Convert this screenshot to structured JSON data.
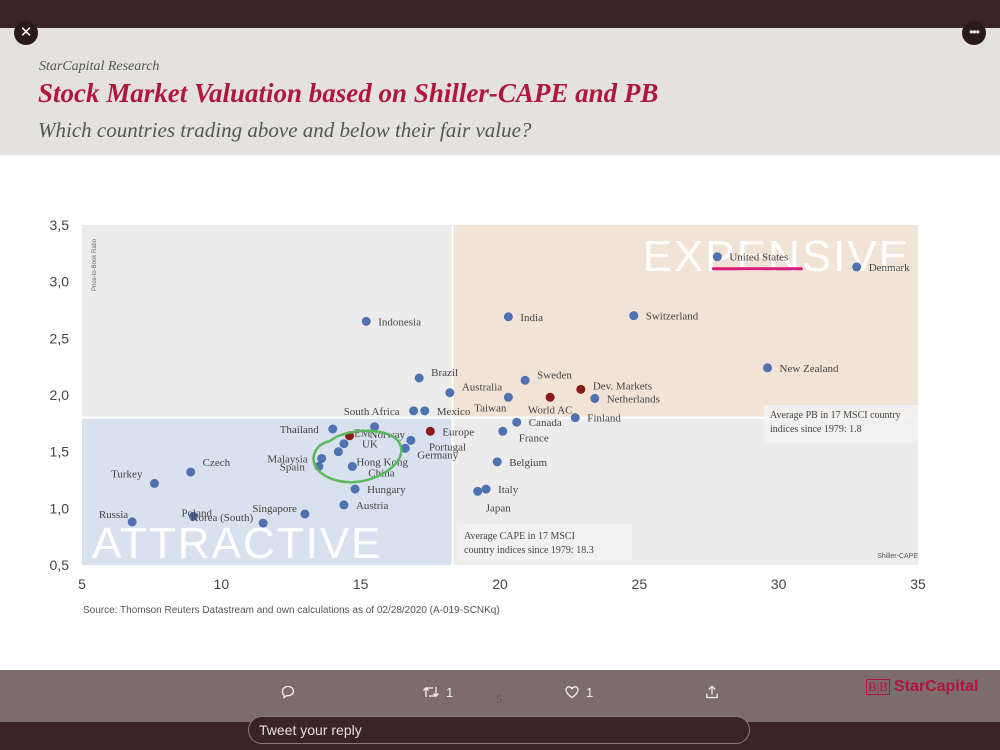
{
  "header": {
    "research": "StarCapital Research",
    "title": "Stock Market Valuation based on Shiller-CAPE and PB",
    "subtitle": "Which countries trading above and below their fair value?"
  },
  "ui": {
    "close_label": "✕",
    "more_label": "•••",
    "retweet_count": "1",
    "like_count": "1",
    "reply_placeholder": "Tweet your reply",
    "page_number": "5"
  },
  "logo": {
    "mark": "B|B",
    "text": "StarCapital"
  },
  "chart_data": {
    "type": "scatter",
    "xlabel": "Shiller-CAPE",
    "ylabel": "Price-to-Book Ratio",
    "xlim": [
      5,
      35
    ],
    "ylim": [
      0.5,
      3.5
    ],
    "xticks": [
      "5",
      "10",
      "15",
      "20",
      "25",
      "30",
      "35"
    ],
    "yticks": [
      "0,5",
      "1,0",
      "1,5",
      "2,0",
      "2,5",
      "3,0",
      "3,5"
    ],
    "avg_cape": 18.3,
    "avg_pb": 1.8,
    "quadrant_labels": {
      "expensive": "EXPENSIVE",
      "attractive": "ATTRACTIVE"
    },
    "avg_cape_note": [
      "Average CAPE in 17 MSCI",
      "country indices since 1979: 18.3"
    ],
    "avg_pb_note": [
      "Average PB in 17 MSCI country",
      "indices since 1979: 1.8"
    ],
    "source": "Source: Thomson Reuters Datastream and own calculations as of 02/28/2020 (A-019-SCNKq)",
    "colors": {
      "country": "#4f72b3",
      "aggregate": "#8b1a1a",
      "highlight_us": "#d81b7c",
      "highlight_circle": "#5cb85c"
    },
    "points": [
      {
        "label": "United States",
        "x": 27.8,
        "y": 3.22,
        "kind": "country"
      },
      {
        "label": "Denmark",
        "x": 32.8,
        "y": 3.13,
        "kind": "country"
      },
      {
        "label": "India",
        "x": 20.3,
        "y": 2.69,
        "kind": "country"
      },
      {
        "label": "Switzerland",
        "x": 24.8,
        "y": 2.7,
        "kind": "country"
      },
      {
        "label": "Indonesia",
        "x": 15.2,
        "y": 2.65,
        "kind": "country"
      },
      {
        "label": "New Zealand",
        "x": 29.6,
        "y": 2.24,
        "kind": "country"
      },
      {
        "label": "Brazil",
        "x": 17.1,
        "y": 2.15,
        "kind": "country"
      },
      {
        "label": "Sweden",
        "x": 20.9,
        "y": 2.13,
        "kind": "country"
      },
      {
        "label": "Australia",
        "x": 18.2,
        "y": 2.02,
        "kind": "country"
      },
      {
        "label": "Dev. Markets",
        "x": 22.9,
        "y": 2.05,
        "kind": "aggregate"
      },
      {
        "label": "Taiwan",
        "x": 20.3,
        "y": 1.98,
        "kind": "country"
      },
      {
        "label": "World AC",
        "x": 21.8,
        "y": 1.98,
        "kind": "aggregate"
      },
      {
        "label": "Netherlands",
        "x": 23.4,
        "y": 1.97,
        "kind": "country"
      },
      {
        "label": "South Africa",
        "x": 16.9,
        "y": 1.86,
        "kind": "country"
      },
      {
        "label": "Mexico",
        "x": 17.3,
        "y": 1.86,
        "kind": "country"
      },
      {
        "label": "Finland",
        "x": 22.7,
        "y": 1.8,
        "kind": "country"
      },
      {
        "label": "Canada",
        "x": 20.6,
        "y": 1.76,
        "kind": "country"
      },
      {
        "label": "Thailand",
        "x": 14.0,
        "y": 1.7,
        "kind": "country"
      },
      {
        "label": "EM",
        "x": 15.5,
        "y": 1.72,
        "kind": "country"
      },
      {
        "label": "Europe",
        "x": 17.5,
        "y": 1.68,
        "kind": "aggregate"
      },
      {
        "label": "France",
        "x": 20.1,
        "y": 1.68,
        "kind": "country"
      },
      {
        "label": "Norway",
        "x": 14.6,
        "y": 1.64,
        "kind": "aggregate"
      },
      {
        "label": "Portugal",
        "x": 16.8,
        "y": 1.6,
        "kind": "country"
      },
      {
        "label": "UK",
        "x": 14.4,
        "y": 1.57,
        "kind": "country"
      },
      {
        "label": "Germany",
        "x": 16.6,
        "y": 1.53,
        "kind": "country"
      },
      {
        "label": "Hong Kong",
        "x": 14.2,
        "y": 1.5,
        "kind": "country"
      },
      {
        "label": "Malaysia",
        "x": 13.6,
        "y": 1.44,
        "kind": "country"
      },
      {
        "label": "Belgium",
        "x": 19.9,
        "y": 1.41,
        "kind": "country"
      },
      {
        "label": "Spain",
        "x": 13.5,
        "y": 1.37,
        "kind": "country"
      },
      {
        "label": "China",
        "x": 14.7,
        "y": 1.37,
        "kind": "country"
      },
      {
        "label": "Czech",
        "x": 8.9,
        "y": 1.32,
        "kind": "country"
      },
      {
        "label": "Turkey",
        "x": 7.6,
        "y": 1.22,
        "kind": "country"
      },
      {
        "label": "Italy",
        "x": 19.5,
        "y": 1.17,
        "kind": "country"
      },
      {
        "label": "Japan",
        "x": 19.2,
        "y": 1.15,
        "kind": "country"
      },
      {
        "label": "Hungary",
        "x": 14.8,
        "y": 1.17,
        "kind": "country"
      },
      {
        "label": "Austria",
        "x": 14.4,
        "y": 1.03,
        "kind": "country"
      },
      {
        "label": "Singapore",
        "x": 13.0,
        "y": 0.95,
        "kind": "country"
      },
      {
        "label": "Poland",
        "x": 9.0,
        "y": 0.93,
        "kind": "country"
      },
      {
        "label": "Russia",
        "x": 6.8,
        "y": 0.88,
        "kind": "country"
      },
      {
        "label": "Korea (South)",
        "x": 11.5,
        "y": 0.87,
        "kind": "country"
      }
    ]
  }
}
